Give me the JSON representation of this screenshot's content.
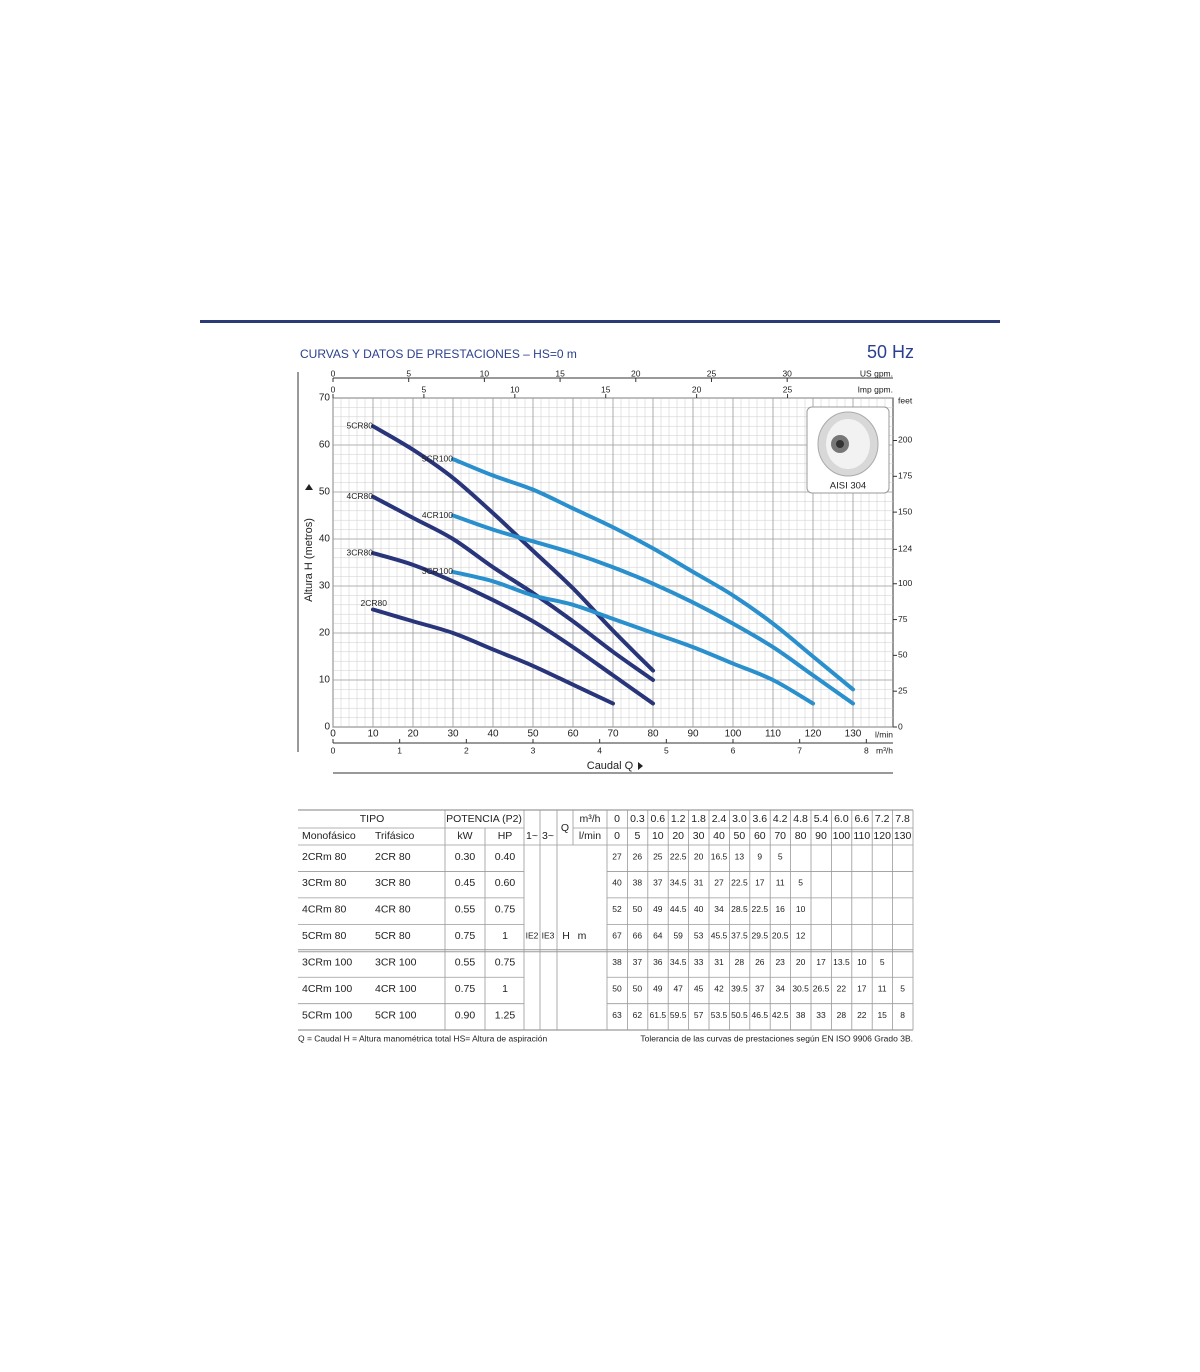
{
  "header": {
    "title": "CURVAS Y DATOS DE PRESTACIONES –  HS=0 m",
    "frequency": "50 Hz"
  },
  "chart_data": {
    "type": "line",
    "y_label": "Altura H (metros)",
    "x_label": "Caudal Q",
    "x_unit": "l/min",
    "x": [
      0,
      5,
      10,
      20,
      30,
      40,
      50,
      60,
      70,
      80,
      90,
      100,
      110,
      120,
      130
    ],
    "xlim": [
      0,
      140
    ],
    "xticks": [
      0,
      10,
      20,
      30,
      40,
      50,
      60,
      70,
      80,
      90,
      100,
      110,
      120,
      130
    ],
    "ylim": [
      0,
      70
    ],
    "yticks": [
      0,
      10,
      20,
      30,
      40,
      50,
      60,
      70
    ],
    "grid": true,
    "series": [
      {
        "name": "5CR80",
        "color": "#28357a",
        "values": [
          null,
          null,
          64,
          59,
          53,
          45.5,
          37.5,
          29.5,
          20.5,
          12,
          null,
          null,
          null,
          null,
          null
        ]
      },
      {
        "name": "4CR80",
        "color": "#28357a",
        "values": [
          null,
          null,
          49,
          44.5,
          40,
          34,
          28.5,
          22.5,
          16,
          10,
          null,
          null,
          null,
          null,
          null
        ]
      },
      {
        "name": "3CR80",
        "color": "#28357a",
        "values": [
          null,
          null,
          37,
          34.5,
          31,
          27,
          22.5,
          17,
          11,
          5,
          null,
          null,
          null,
          null,
          null
        ]
      },
      {
        "name": "2CR80",
        "color": "#28357a",
        "values": [
          null,
          null,
          25,
          22.5,
          20,
          16.5,
          13,
          9,
          5,
          null,
          null,
          null,
          null,
          null,
          null
        ]
      },
      {
        "name": "5CR100",
        "color": "#2a8fcd",
        "values": [
          null,
          null,
          null,
          null,
          57,
          53.5,
          50.5,
          46.5,
          42.5,
          38,
          33,
          28,
          22,
          15,
          8
        ]
      },
      {
        "name": "4CR100",
        "color": "#2a8fcd",
        "values": [
          null,
          null,
          null,
          null,
          45,
          42,
          39.5,
          37,
          34,
          30.5,
          26.5,
          22,
          17,
          11,
          5
        ]
      },
      {
        "name": "3CR100",
        "color": "#2a8fcd",
        "values": [
          null,
          null,
          null,
          null,
          33,
          31,
          28,
          26,
          23,
          20,
          17,
          13.5,
          10,
          5,
          null
        ]
      }
    ],
    "secondary_axes": {
      "us_gpm": {
        "label": "US gpm.",
        "lim": [
          0,
          36.99
        ],
        "ticks": [
          0,
          5,
          10,
          15,
          20,
          25,
          30
        ]
      },
      "imp_gpm": {
        "label": "Imp gpm.",
        "lim": [
          0,
          30.8
        ],
        "ticks": [
          0,
          5,
          10,
          15,
          20,
          25
        ]
      },
      "m3h": {
        "label": "m³/h",
        "lim": [
          0,
          8.4
        ],
        "ticks": [
          0,
          1,
          2,
          3,
          4,
          5,
          6,
          7,
          8
        ]
      },
      "feet": {
        "label": "feet",
        "lim": [
          0,
          229.66
        ],
        "ticks": [
          0,
          25,
          50,
          75,
          100,
          124,
          150,
          175,
          200
        ]
      }
    },
    "inset_label": "AISI 304"
  },
  "table": {
    "header": {
      "tipo": "TIPO",
      "potencia": "POTENCIA (P2)",
      "monofasico": "Monofásico",
      "trifasico": "Trifásico",
      "kw": "kW",
      "hp": "HP",
      "phase1": "1~",
      "phase3": "3~",
      "q": "Q",
      "m3h": "m³/h",
      "lmin": "l/min"
    },
    "q_m3h": [
      "0",
      "0.3",
      "0.6",
      "1.2",
      "1.8",
      "2.4",
      "3.0",
      "3.6",
      "4.2",
      "4.8",
      "5.4",
      "6.0",
      "6.6",
      "7.2",
      "7.8"
    ],
    "q_lmin": [
      "0",
      "5",
      "10",
      "20",
      "30",
      "40",
      "50",
      "60",
      "70",
      "80",
      "90",
      "100",
      "110",
      "120",
      "130"
    ],
    "ie2": "IE2",
    "ie3": "IE3",
    "h": "H",
    "h_unit": "m",
    "rows": [
      {
        "mono": "2CRm 80",
        "tri": "2CR 80",
        "kw": "0.30",
        "hp": "0.40",
        "h": [
          "27",
          "26",
          "25",
          "22.5",
          "20",
          "16.5",
          "13",
          "9",
          "5"
        ]
      },
      {
        "mono": "3CRm 80",
        "tri": "3CR 80",
        "kw": "0.45",
        "hp": "0.60",
        "h": [
          "40",
          "38",
          "37",
          "34.5",
          "31",
          "27",
          "22.5",
          "17",
          "11",
          "5"
        ]
      },
      {
        "mono": "4CRm 80",
        "tri": "4CR 80",
        "kw": "0.55",
        "hp": "0.75",
        "h": [
          "52",
          "50",
          "49",
          "44.5",
          "40",
          "34",
          "28.5",
          "22.5",
          "16",
          "10"
        ]
      },
      {
        "mono": "5CRm 80",
        "tri": "5CR 80",
        "kw": "0.75",
        "hp": "1",
        "h": [
          "67",
          "66",
          "64",
          "59",
          "53",
          "45.5",
          "37.5",
          "29.5",
          "20.5",
          "12"
        ]
      },
      {
        "mono": "3CRm 100",
        "tri": "3CR 100",
        "kw": "0.55",
        "hp": "0.75",
        "h": [
          "38",
          "37",
          "36",
          "34.5",
          "33",
          "31",
          "28",
          "26",
          "23",
          "20",
          "17",
          "13.5",
          "10",
          "5"
        ]
      },
      {
        "mono": "4CRm 100",
        "tri": "4CR 100",
        "kw": "0.75",
        "hp": "1",
        "h": [
          "50",
          "50",
          "49",
          "47",
          "45",
          "42",
          "39.5",
          "37",
          "34",
          "30.5",
          "26.5",
          "22",
          "17",
          "11",
          "5"
        ]
      },
      {
        "mono": "5CRm 100",
        "tri": "5CR 100",
        "kw": "0.90",
        "hp": "1.25",
        "h": [
          "63",
          "62",
          "61.5",
          "59.5",
          "57",
          "53.5",
          "50.5",
          "46.5",
          "42.5",
          "38",
          "33",
          "28",
          "22",
          "15",
          "8"
        ]
      }
    ]
  },
  "footer": {
    "legend": "Q = Caudal   H = Altura manométrica total   HS= Altura de aspiración",
    "tolerance": "Tolerancia de las curvas de prestaciones según EN ISO 9906 Grado 3B."
  }
}
